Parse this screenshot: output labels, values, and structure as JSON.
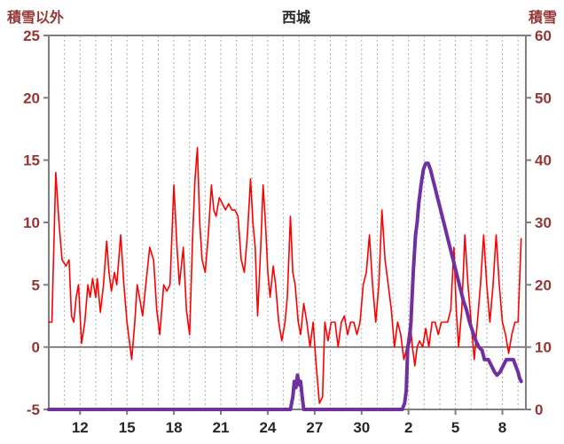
{
  "colors": {
    "temperature_line": "#ff0000",
    "snow_line": "#7030a0",
    "axis_text": "#943634",
    "tick_text": "#262626",
    "grid": "#ababab",
    "frame": "#7f7f7f",
    "zero_line": "#595959",
    "background": "#ffffff"
  },
  "chart_data": {
    "type": "line",
    "title": "西城",
    "left_axis": {
      "label": "積雪以外",
      "range": [
        -5,
        25
      ],
      "tick_step": 5
    },
    "right_axis": {
      "label": "積雪",
      "range": [
        0,
        60
      ],
      "tick_step": 10
    },
    "left_tick_values": [
      -5,
      0,
      5,
      10,
      15,
      20,
      25
    ],
    "right_tick_values": [
      0,
      10,
      20,
      30,
      40,
      50,
      60
    ],
    "x_range": [
      10,
      40.5
    ],
    "x_tick_labels": [
      "12",
      "15",
      "18",
      "21",
      "24",
      "27",
      "30",
      "2",
      "5",
      "8"
    ],
    "x_tick_positions": [
      12,
      15,
      18,
      21,
      24,
      27,
      30,
      33,
      36,
      39
    ],
    "grid": "vertical-dashed-daily",
    "legend": "none",
    "series": [
      {
        "name": "積雪以外",
        "axis": "left",
        "color": "#ff0000",
        "width": 1.6,
        "points": [
          [
            10.0,
            2
          ],
          [
            10.2,
            2
          ],
          [
            10.45,
            14
          ],
          [
            10.65,
            10
          ],
          [
            10.85,
            7
          ],
          [
            11.1,
            6.5
          ],
          [
            11.3,
            7
          ],
          [
            11.45,
            2.5
          ],
          [
            11.6,
            2
          ],
          [
            11.75,
            4
          ],
          [
            11.9,
            5
          ],
          [
            12.1,
            0.3
          ],
          [
            12.3,
            2
          ],
          [
            12.5,
            5
          ],
          [
            12.65,
            4
          ],
          [
            12.8,
            5.5
          ],
          [
            13.0,
            4
          ],
          [
            13.1,
            5.5
          ],
          [
            13.3,
            2.8
          ],
          [
            13.5,
            5
          ],
          [
            13.7,
            8.5
          ],
          [
            13.85,
            6
          ],
          [
            14.0,
            4.5
          ],
          [
            14.2,
            6
          ],
          [
            14.35,
            5
          ],
          [
            14.6,
            9
          ],
          [
            14.8,
            5
          ],
          [
            15.0,
            2
          ],
          [
            15.3,
            -1
          ],
          [
            15.5,
            2
          ],
          [
            15.65,
            5
          ],
          [
            15.8,
            4
          ],
          [
            16.0,
            2.5
          ],
          [
            16.2,
            5
          ],
          [
            16.45,
            8
          ],
          [
            16.7,
            7
          ],
          [
            16.9,
            3
          ],
          [
            17.1,
            1
          ],
          [
            17.35,
            5
          ],
          [
            17.55,
            4.5
          ],
          [
            17.75,
            5
          ],
          [
            18.0,
            13
          ],
          [
            18.2,
            8
          ],
          [
            18.35,
            5
          ],
          [
            18.6,
            8
          ],
          [
            18.8,
            3
          ],
          [
            19.0,
            1
          ],
          [
            19.2,
            9
          ],
          [
            19.35,
            13.5
          ],
          [
            19.5,
            16
          ],
          [
            19.65,
            10
          ],
          [
            19.8,
            7
          ],
          [
            20.0,
            6
          ],
          [
            20.2,
            9
          ],
          [
            20.4,
            13
          ],
          [
            20.55,
            11
          ],
          [
            20.7,
            10.5
          ],
          [
            20.9,
            12
          ],
          [
            21.1,
            11.5
          ],
          [
            21.3,
            11
          ],
          [
            21.5,
            11.5
          ],
          [
            21.7,
            11
          ],
          [
            21.9,
            11
          ],
          [
            22.1,
            10.5
          ],
          [
            22.3,
            7
          ],
          [
            22.5,
            6
          ],
          [
            22.7,
            9
          ],
          [
            22.9,
            13.5
          ],
          [
            23.05,
            10
          ],
          [
            23.2,
            8
          ],
          [
            23.35,
            2.5
          ],
          [
            23.55,
            8
          ],
          [
            23.7,
            13
          ],
          [
            23.85,
            10
          ],
          [
            24.0,
            6
          ],
          [
            24.15,
            4
          ],
          [
            24.35,
            6.5
          ],
          [
            24.5,
            5
          ],
          [
            24.7,
            2
          ],
          [
            24.9,
            0.5
          ],
          [
            25.1,
            2
          ],
          [
            25.25,
            4
          ],
          [
            25.45,
            10.5
          ],
          [
            25.6,
            6
          ],
          [
            25.75,
            5
          ],
          [
            25.95,
            2
          ],
          [
            26.1,
            1
          ],
          [
            26.3,
            3.5
          ],
          [
            26.5,
            2
          ],
          [
            26.7,
            0
          ],
          [
            26.9,
            2
          ],
          [
            27.1,
            -1.5
          ],
          [
            27.3,
            -4.5
          ],
          [
            27.5,
            -4
          ],
          [
            27.65,
            2
          ],
          [
            27.85,
            0.5
          ],
          [
            28.05,
            2
          ],
          [
            28.3,
            2
          ],
          [
            28.5,
            0
          ],
          [
            28.7,
            2
          ],
          [
            28.9,
            2.5
          ],
          [
            29.1,
            1
          ],
          [
            29.3,
            2
          ],
          [
            29.5,
            2
          ],
          [
            29.7,
            1
          ],
          [
            29.9,
            2
          ],
          [
            30.1,
            5
          ],
          [
            30.3,
            6
          ],
          [
            30.5,
            9
          ],
          [
            30.7,
            5
          ],
          [
            30.9,
            2
          ],
          [
            31.1,
            5
          ],
          [
            31.3,
            11
          ],
          [
            31.5,
            7
          ],
          [
            31.7,
            5
          ],
          [
            31.9,
            3
          ],
          [
            32.1,
            0
          ],
          [
            32.3,
            2
          ],
          [
            32.5,
            1
          ],
          [
            32.7,
            -1
          ],
          [
            32.9,
            0
          ],
          [
            33.1,
            2
          ],
          [
            33.25,
            0
          ],
          [
            33.4,
            -1.5
          ],
          [
            33.55,
            0
          ],
          [
            33.7,
            0.5
          ],
          [
            33.9,
            0
          ],
          [
            34.1,
            1.5
          ],
          [
            34.3,
            0
          ],
          [
            34.5,
            2
          ],
          [
            34.7,
            2
          ],
          [
            34.9,
            1
          ],
          [
            35.1,
            2
          ],
          [
            35.3,
            2
          ],
          [
            35.5,
            2
          ],
          [
            35.7,
            3
          ],
          [
            35.9,
            8
          ],
          [
            36.05,
            3
          ],
          [
            36.2,
            0
          ],
          [
            36.4,
            3
          ],
          [
            36.6,
            9
          ],
          [
            36.8,
            5
          ],
          [
            37.0,
            2
          ],
          [
            37.2,
            -1
          ],
          [
            37.4,
            2
          ],
          [
            37.6,
            5
          ],
          [
            37.8,
            9
          ],
          [
            38.0,
            5
          ],
          [
            38.2,
            2
          ],
          [
            38.4,
            5
          ],
          [
            38.6,
            9
          ],
          [
            38.8,
            5
          ],
          [
            39.0,
            2
          ],
          [
            39.2,
            1
          ],
          [
            39.4,
            -0.5
          ],
          [
            39.6,
            1
          ],
          [
            39.8,
            2
          ],
          [
            40.0,
            2
          ],
          [
            40.2,
            8.7
          ]
        ]
      },
      {
        "name": "積雪",
        "axis": "right",
        "color": "#7030a0",
        "width": 4,
        "points": [
          [
            10.0,
            0
          ],
          [
            25.45,
            0
          ],
          [
            25.6,
            2
          ],
          [
            25.7,
            4.5
          ],
          [
            25.8,
            3.5
          ],
          [
            25.9,
            5.5
          ],
          [
            26.0,
            4
          ],
          [
            26.1,
            4.5
          ],
          [
            26.2,
            2
          ],
          [
            26.3,
            0
          ],
          [
            32.6,
            0
          ],
          [
            32.75,
            1
          ],
          [
            32.85,
            3
          ],
          [
            32.95,
            10
          ],
          [
            33.05,
            11
          ],
          [
            33.15,
            14
          ],
          [
            33.3,
            22
          ],
          [
            33.45,
            28
          ],
          [
            33.55,
            30
          ],
          [
            33.65,
            33
          ],
          [
            33.8,
            36
          ],
          [
            33.95,
            38.5
          ],
          [
            34.1,
            39.5
          ],
          [
            34.25,
            39.5
          ],
          [
            34.4,
            38.5
          ],
          [
            34.55,
            37
          ],
          [
            34.7,
            35.5
          ],
          [
            34.85,
            34
          ],
          [
            35.0,
            32.5
          ],
          [
            35.15,
            31
          ],
          [
            35.3,
            29.5
          ],
          [
            35.5,
            27.5
          ],
          [
            35.7,
            25.5
          ],
          [
            35.9,
            23.5
          ],
          [
            36.1,
            21.5
          ],
          [
            36.3,
            19.5
          ],
          [
            36.5,
            17.5
          ],
          [
            36.7,
            16
          ],
          [
            36.9,
            14
          ],
          [
            37.1,
            12.5
          ],
          [
            37.3,
            11
          ],
          [
            37.5,
            10
          ],
          [
            37.7,
            9.5
          ],
          [
            37.85,
            8
          ],
          [
            38.1,
            8
          ],
          [
            38.3,
            7
          ],
          [
            38.5,
            6
          ],
          [
            38.65,
            5.5
          ],
          [
            38.85,
            6
          ],
          [
            39.05,
            7
          ],
          [
            39.25,
            8
          ],
          [
            39.5,
            8
          ],
          [
            39.7,
            8
          ],
          [
            39.85,
            7
          ],
          [
            40.0,
            6
          ],
          [
            40.1,
            5
          ],
          [
            40.2,
            4.5
          ]
        ]
      }
    ]
  }
}
